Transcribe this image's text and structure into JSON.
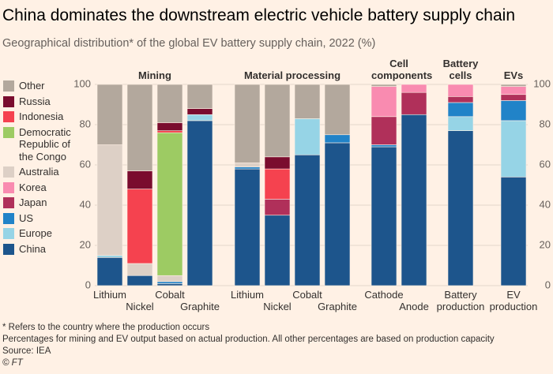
{
  "chart_data": {
    "type": "stacked-bar",
    "title": "China dominates the downstream electric vehicle battery supply chain",
    "subtitle": "Geographical distribution* of the global EV battery supply chain, 2022 (%)",
    "groups": [
      {
        "name": "Mining",
        "categories": [
          "Lithium",
          "Nickel",
          "Cobalt",
          "Graphite"
        ]
      },
      {
        "name": "Material processing",
        "categories": [
          "Lithium",
          "Nickel",
          "Cobalt",
          "Graphite"
        ]
      },
      {
        "name": "Cell components",
        "categories": [
          "Cathode",
          "Anode"
        ]
      },
      {
        "name": "Battery cells",
        "categories": [
          "Battery production"
        ]
      },
      {
        "name": "EVs",
        "categories": [
          "EV production"
        ]
      }
    ],
    "series": [
      {
        "name": "China",
        "color": "#1d558c",
        "values": [
          14,
          5,
          1,
          82,
          58,
          35,
          65,
          71,
          69,
          85,
          77,
          54
        ]
      },
      {
        "name": "Europe",
        "color": "#96d4e6",
        "values": [
          1,
          0,
          0,
          3,
          0,
          0,
          18,
          0,
          0,
          0,
          7,
          28
        ]
      },
      {
        "name": "US",
        "color": "#2183c8",
        "values": [
          0,
          0,
          1,
          0,
          1,
          0,
          0,
          4,
          1,
          0,
          7,
          10
        ]
      },
      {
        "name": "Japan",
        "color": "#b0305a",
        "values": [
          0,
          0,
          0,
          0,
          0,
          8,
          0,
          0,
          14,
          11,
          3,
          3
        ]
      },
      {
        "name": "Korea",
        "color": "#f98bb0",
        "values": [
          0,
          0,
          0,
          0,
          0,
          0,
          0,
          0,
          15,
          4,
          6,
          4
        ]
      },
      {
        "name": "Australia",
        "color": "#ddd0c6",
        "values": [
          55,
          6,
          3,
          0,
          2,
          0,
          0,
          0,
          0,
          0,
          0,
          0
        ]
      },
      {
        "name": "Democratic Republic of the Congo",
        "color": "#9dcb63",
        "values": [
          0,
          0,
          71,
          0,
          0,
          0,
          0,
          0,
          0,
          0,
          0,
          0
        ]
      },
      {
        "name": "Indonesia",
        "color": "#f5424f",
        "values": [
          0,
          37,
          1,
          0,
          0,
          15,
          0,
          0,
          0,
          0,
          0,
          0
        ]
      },
      {
        "name": "Russia",
        "color": "#7a0c2e",
        "values": [
          0,
          9,
          4,
          3,
          0,
          6,
          0,
          0,
          0,
          0,
          0,
          0
        ]
      },
      {
        "name": "Other",
        "color": "#b3a89d",
        "values": [
          30,
          43,
          19,
          12,
          39,
          36,
          17,
          25,
          1,
          0,
          0,
          1
        ]
      }
    ],
    "ylim": [
      0,
      100
    ],
    "yticks": [
      0,
      20,
      40,
      60,
      80,
      100
    ],
    "grid": true,
    "note": "* Refers to the country where the production occurs",
    "subnote": "Percentages for mining and EV output based on actual production. All other percentages are based on production capacity",
    "source": "Source: IEA",
    "credit": "© FT"
  }
}
